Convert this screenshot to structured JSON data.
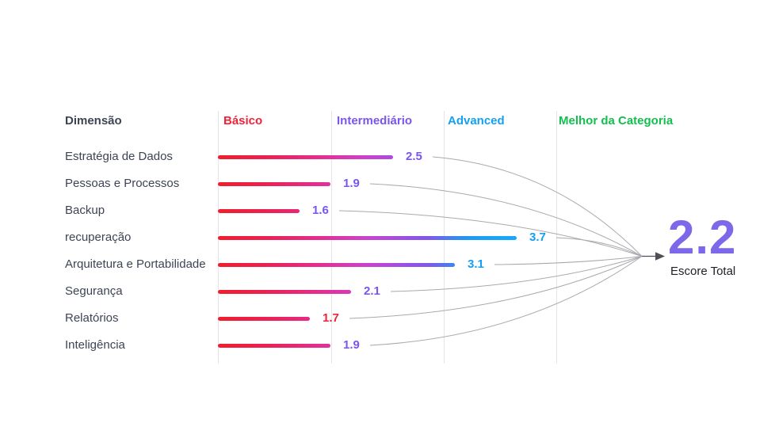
{
  "header": {
    "dimension_label": "Dimensão",
    "columns": [
      {
        "label": "Básico",
        "color": "#ee2438"
      },
      {
        "label": "Intermediário",
        "color": "#7a55ee"
      },
      {
        "label": "Advanced",
        "color": "#14a0f2"
      },
      {
        "label": "Melhor da Categoria",
        "color": "#12bf4f"
      }
    ]
  },
  "chart_data": {
    "type": "bar",
    "orientation": "horizontal",
    "categories": [
      "Estratégia de Dados",
      "Pessoas e Processos",
      "Backup",
      "recuperação",
      "Arquitetura e Portabilidade",
      "Segurança",
      "Relatórios",
      "Inteligência"
    ],
    "values": [
      2.5,
      1.9,
      1.6,
      3.7,
      3.1,
      2.1,
      1.7,
      1.9
    ],
    "value_label_colors": [
      "#7a55ee",
      "#7a55ee",
      "#7a55ee",
      "#14a0f2",
      "#14a0f2",
      "#7a55ee",
      "#ee2438",
      "#7a55ee"
    ],
    "column_headers": [
      "Básico",
      "Intermediário",
      "Advanced",
      "Melhor da Categoria"
    ],
    "xlim": [
      1,
      4
    ],
    "grid": true,
    "bar_gradient": [
      "#f01e2c",
      "#e52d90",
      "#cc43cd",
      "#8456ec",
      "#17adfa"
    ],
    "annotation": {
      "value": "2.2",
      "label": "Escore Total"
    }
  },
  "total": {
    "value": "2.2",
    "label": "Escore Total",
    "color": "#7e68ea"
  },
  "decor": {
    "curve_color": "#a9a9ae",
    "arrow_color": "#4f4f55",
    "gridline_color": "#e5e5e9"
  }
}
